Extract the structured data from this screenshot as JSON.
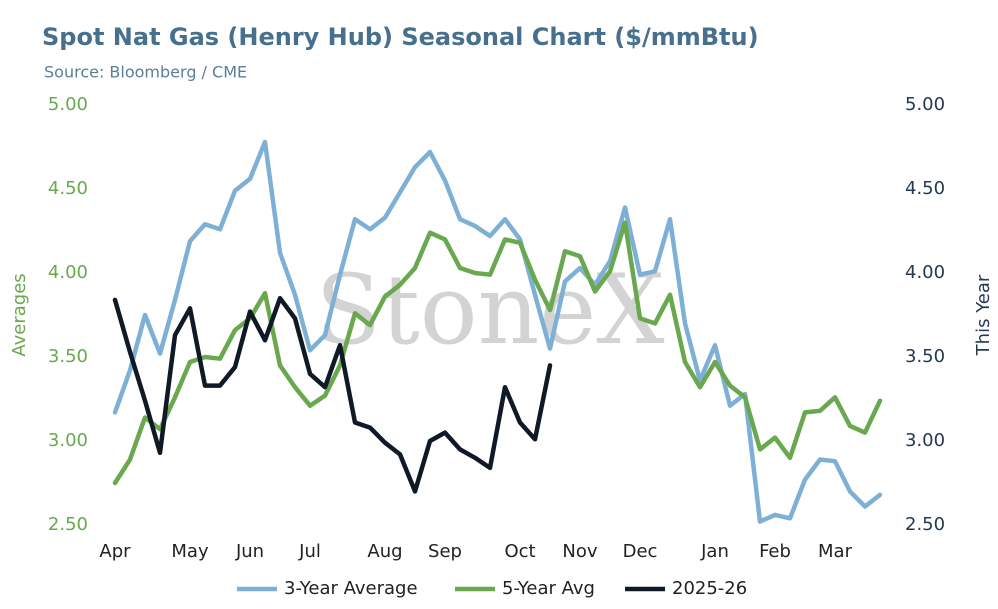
{
  "chart_data": {
    "type": "line",
    "title": "Spot Nat Gas (Henry Hub) Seasonal Chart ($/mmBtu)",
    "subtitle": "Source: Bloomberg / CME",
    "watermark": "StoneX",
    "y_label": "Averages",
    "y2_label": "This Year",
    "categories": [
      "Apr",
      null,
      null,
      null,
      null,
      "May",
      null,
      null,
      null,
      "Jun",
      null,
      null,
      null,
      "Jul",
      null,
      null,
      null,
      null,
      "Aug",
      null,
      null,
      null,
      "Sep",
      null,
      null,
      null,
      null,
      "Oct",
      null,
      null,
      null,
      "Nov",
      null,
      null,
      null,
      "Dec",
      null,
      null,
      null,
      null,
      "Jan",
      null,
      null,
      null,
      "Feb",
      null,
      null,
      null,
      "Mar",
      null,
      null,
      null
    ],
    "ylim": [
      2.5,
      5.0
    ],
    "yticks": [
      {
        "value": 2.5,
        "label": "2.50"
      },
      {
        "value": 3.0,
        "label": "3.00"
      },
      {
        "value": 3.5,
        "label": "3.50"
      },
      {
        "value": 4.0,
        "label": "4.00"
      },
      {
        "value": 4.5,
        "label": "4.50"
      },
      {
        "value": 5.0,
        "label": "5.00"
      }
    ],
    "y2lim": [
      2.5,
      5.0
    ],
    "y2ticks": [
      {
        "value": 2.5,
        "label": "2.50"
      },
      {
        "value": 3.0,
        "label": "3.00"
      },
      {
        "value": 3.5,
        "label": "3.50"
      },
      {
        "value": 4.0,
        "label": "4.00"
      },
      {
        "value": 4.5,
        "label": "4.50"
      },
      {
        "value": 5.0,
        "label": "5.00"
      }
    ],
    "grid": false,
    "legend": "bottom",
    "series": [
      {
        "name": "3-Year Average",
        "color": "#7eb0d5",
        "values": [
          3.17,
          3.42,
          3.75,
          3.52,
          3.84,
          4.19,
          4.29,
          4.26,
          4.49,
          4.56,
          4.78,
          4.12,
          3.87,
          3.54,
          3.63,
          3.99,
          4.32,
          4.26,
          4.33,
          4.48,
          4.63,
          4.72,
          4.55,
          4.32,
          4.28,
          4.22,
          4.32,
          4.2,
          3.87,
          3.55,
          3.95,
          4.03,
          3.93,
          4.07,
          4.39,
          3.99,
          4.01,
          4.32,
          3.7,
          3.36,
          3.57,
          3.21,
          3.28,
          2.52,
          2.56,
          2.54,
          2.77,
          2.89,
          2.88,
          2.7,
          2.61,
          2.68
        ]
      },
      {
        "name": "5-Year Avg",
        "color": "#6aa84f",
        "values": [
          2.75,
          2.89,
          3.14,
          3.07,
          3.26,
          3.47,
          3.5,
          3.49,
          3.66,
          3.73,
          3.88,
          3.45,
          3.32,
          3.21,
          3.27,
          3.45,
          3.76,
          3.69,
          3.86,
          3.93,
          4.03,
          4.24,
          4.2,
          4.03,
          4.0,
          3.99,
          4.2,
          4.18,
          3.96,
          3.78,
          4.13,
          4.1,
          3.89,
          4.01,
          4.3,
          3.73,
          3.7,
          3.87,
          3.47,
          3.32,
          3.47,
          3.33,
          3.26,
          2.95,
          3.02,
          2.9,
          3.17,
          3.18,
          3.26,
          3.09,
          3.05,
          3.24
        ]
      },
      {
        "name": "2025-26",
        "color": "#0f1a26",
        "axis": "y2",
        "values": [
          3.84,
          3.53,
          3.24,
          2.93,
          3.63,
          3.79,
          3.33,
          3.33,
          3.44,
          3.77,
          3.6,
          3.85,
          3.73,
          3.4,
          3.32,
          3.57,
          3.11,
          3.08,
          2.99,
          2.92,
          2.7,
          3.0,
          3.05,
          2.95,
          2.9,
          2.84,
          3.32,
          3.11,
          3.01,
          3.45,
          null,
          null,
          null,
          null,
          null,
          null,
          null,
          null,
          null,
          null,
          null,
          null,
          null,
          null,
          null,
          null,
          null,
          null,
          null,
          null,
          null,
          null
        ]
      }
    ]
  }
}
